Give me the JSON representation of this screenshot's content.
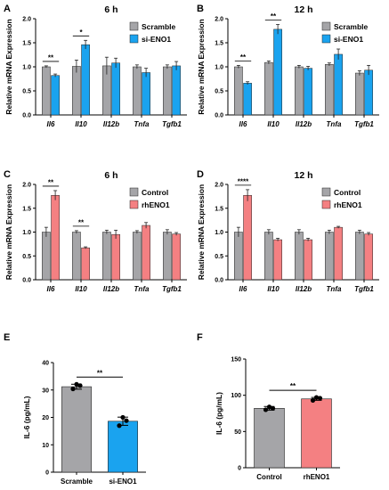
{
  "chart_data": [
    {
      "panel": "A",
      "type": "bar",
      "title": "6 h",
      "ylabel": "Relative mRNA Expression",
      "ylim": [
        0,
        2.0
      ],
      "yticks": [
        "0.0",
        "0.5",
        "1.0",
        "1.5",
        "2.0"
      ],
      "categories": [
        "Il6",
        "Il10",
        "Il12b",
        "Tnfa",
        "Tgfb1"
      ],
      "italic_categories": true,
      "series": [
        {
          "name": "Scramble",
          "color": "#a5a5a8",
          "values": [
            1.0,
            1.01,
            1.02,
            1.0,
            1.0
          ],
          "errors": [
            0.02,
            0.13,
            0.18,
            0.04,
            0.04
          ]
        },
        {
          "name": "si-ENO1",
          "color": "#1aa3ef",
          "values": [
            0.82,
            1.46,
            1.08,
            0.88,
            1.02
          ],
          "errors": [
            0.03,
            0.09,
            0.1,
            0.09,
            0.09
          ]
        }
      ],
      "significance": [
        {
          "category_index": 0,
          "label": "**"
        },
        {
          "category_index": 1,
          "label": "*"
        }
      ]
    },
    {
      "panel": "B",
      "type": "bar",
      "title": "12 h",
      "ylabel": "Relative mRNA Expression",
      "ylim": [
        0,
        2.0
      ],
      "yticks": [
        "0.0",
        "0.5",
        "1.0",
        "1.5",
        "2.0"
      ],
      "categories": [
        "Il6",
        "Il10",
        "Il12b",
        "Tnfa",
        "Tgfb1"
      ],
      "italic_categories": true,
      "series": [
        {
          "name": "Scramble",
          "color": "#a5a5a8",
          "values": [
            1.0,
            1.09,
            1.0,
            1.05,
            0.87
          ],
          "errors": [
            0.03,
            0.03,
            0.03,
            0.03,
            0.05
          ]
        },
        {
          "name": "si-ENO1",
          "color": "#1aa3ef",
          "values": [
            0.66,
            1.78,
            0.97,
            1.26,
            0.93
          ],
          "errors": [
            0.03,
            0.1,
            0.04,
            0.11,
            0.1
          ]
        }
      ],
      "significance": [
        {
          "category_index": 0,
          "label": "**"
        },
        {
          "category_index": 1,
          "label": "**"
        }
      ]
    },
    {
      "panel": "C",
      "type": "bar",
      "title": "6 h",
      "ylabel": "Relative mRNA Expression",
      "ylim": [
        0,
        2.0
      ],
      "yticks": [
        "0.0",
        "0.5",
        "1.0",
        "1.5",
        "2.0"
      ],
      "categories": [
        "Il6",
        "Il10",
        "Il12b",
        "Tnfa",
        "Tgfb1"
      ],
      "italic_categories": true,
      "series": [
        {
          "name": "Control",
          "color": "#a5a5a8",
          "values": [
            1.0,
            1.0,
            1.0,
            1.0,
            1.0
          ],
          "errors": [
            0.1,
            0.03,
            0.04,
            0.03,
            0.05
          ]
        },
        {
          "name": "rhENO1",
          "color": "#f48082",
          "values": [
            1.77,
            0.67,
            0.95,
            1.14,
            0.96
          ],
          "errors": [
            0.1,
            0.02,
            0.09,
            0.06,
            0.03
          ]
        }
      ],
      "significance": [
        {
          "category_index": 0,
          "label": "**"
        },
        {
          "category_index": 1,
          "label": "**"
        }
      ]
    },
    {
      "panel": "D",
      "type": "bar",
      "title": "12 h",
      "ylabel": "Relative mRNA Expression",
      "ylim": [
        0,
        2.0
      ],
      "yticks": [
        "0.0",
        "0.5",
        "1.0",
        "1.5",
        "2.0"
      ],
      "categories": [
        "Il6",
        "Il10",
        "Il12b",
        "Tnfa",
        "Tgfb1"
      ],
      "italic_categories": true,
      "series": [
        {
          "name": "Control",
          "color": "#a5a5a8",
          "values": [
            1.0,
            1.0,
            1.0,
            1.0,
            1.0
          ],
          "errors": [
            0.1,
            0.05,
            0.05,
            0.04,
            0.04
          ]
        },
        {
          "name": "rhENO1",
          "color": "#f48082",
          "values": [
            1.77,
            0.84,
            0.84,
            1.1,
            0.96
          ],
          "errors": [
            0.12,
            0.03,
            0.03,
            0.02,
            0.03
          ]
        }
      ],
      "significance": [
        {
          "category_index": 0,
          "label": "****"
        }
      ]
    },
    {
      "panel": "E",
      "type": "bar",
      "title": "",
      "ylabel": "IL-6 (pg/mL)",
      "ylim": [
        0,
        40
      ],
      "yticks": [
        "0",
        "10",
        "20",
        "30",
        "40"
      ],
      "categories": [
        "Scramble",
        "si-ENO1"
      ],
      "italic_categories": false,
      "series": [
        {
          "name": "",
          "colors": [
            "#a5a5a8",
            "#1aa3ef"
          ],
          "values": [
            31.2,
            18.6
          ],
          "errors": [
            0.9,
            1.5
          ],
          "points": [
            [
              30.4,
              31.6,
              32.1
            ],
            [
              17.0,
              18.8,
              20.0
            ]
          ]
        }
      ],
      "significance": [
        {
          "from": 0,
          "to": 1,
          "label": "**"
        }
      ]
    },
    {
      "panel": "F",
      "type": "bar",
      "title": "",
      "ylabel": "IL-6 (pg/mL)",
      "ylim": [
        0,
        150
      ],
      "yticks": [
        "0",
        "50",
        "100",
        "150"
      ],
      "categories": [
        "Control",
        "rhENO1"
      ],
      "italic_categories": false,
      "series": [
        {
          "name": "",
          "colors": [
            "#a5a5a8",
            "#f48082"
          ],
          "values": [
            82,
            95
          ],
          "errors": [
            2.5,
            2.0
          ],
          "points": [
            [
              80,
              82,
              84
            ],
            [
              93,
              96,
              97
            ]
          ]
        }
      ],
      "significance": [
        {
          "from": 0,
          "to": 1,
          "label": "**"
        }
      ]
    }
  ]
}
